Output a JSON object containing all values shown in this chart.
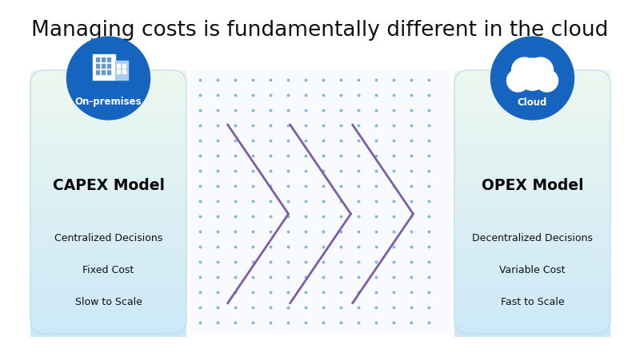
{
  "title": "Managing costs is fundamentally different in the cloud",
  "title_fontsize": 19,
  "background_color": "#ffffff",
  "left_card": {
    "label": "CAPEX Model",
    "items": [
      "Centralized Decisions",
      "Fixed Cost",
      "Slow to Scale"
    ],
    "icon_label": "On-premises",
    "icon_color": "#1565c0"
  },
  "right_card": {
    "label": "OPEX Model",
    "items": [
      "Decentralized Decisions",
      "Variable Cost",
      "Fast to Scale"
    ],
    "icon_label": "Cloud",
    "icon_color": "#1565c0"
  },
  "card_grad_top": "#edf7ef",
  "card_grad_bottom": "#cce9f7",
  "arrow_color": "#7b5ea7",
  "arrow_lw": 2.0,
  "dot_color": "#6aaad4",
  "middle_bg": "#f8fbff"
}
